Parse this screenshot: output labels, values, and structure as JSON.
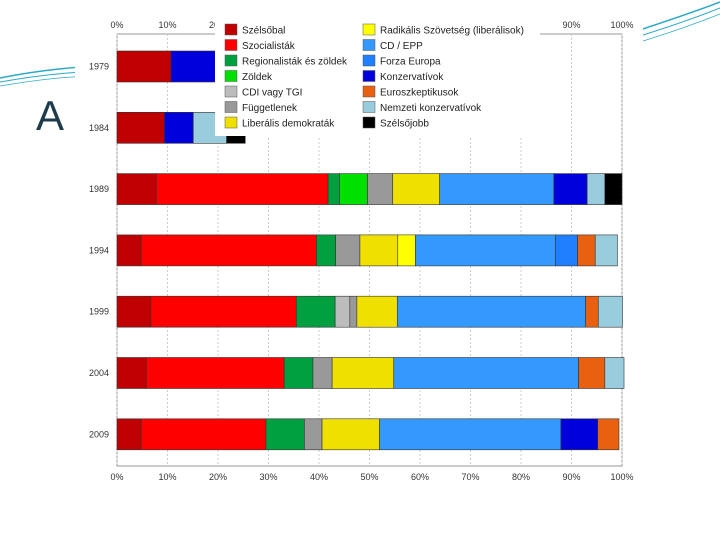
{
  "slide": {
    "title_visible_letter": "A",
    "background_color": "#ffffff",
    "accent_color": "#2aa9c9"
  },
  "chart_data": {
    "type": "bar",
    "orientation": "horizontal",
    "stacked": true,
    "title": "",
    "xlabel": "",
    "ylabel": "",
    "xlim": [
      0,
      100
    ],
    "x_ticks": [
      "0%",
      "10%",
      "20%",
      "30%",
      "40%",
      "50%",
      "60%",
      "70%",
      "80%",
      "90%",
      "100%"
    ],
    "grid": true,
    "legend_position": "top, two columns",
    "categories": [
      "1979",
      "1984",
      "1989",
      "1994",
      "1999",
      "2004",
      "2009"
    ],
    "series": [
      {
        "name": "Szélsőbal",
        "color": "#c00000",
        "values": [
          10.7,
          9.4,
          7.8,
          4.8,
          6.7,
          5.8,
          4.8
        ]
      },
      {
        "name": "Szocialisták",
        "color": "#ff0000",
        "values": [
          0,
          0,
          34.0,
          34.7,
          28.8,
          27.3,
          24.7
        ]
      },
      {
        "name": "Regionalisták és zöldek",
        "color": "#00a040",
        "values": [
          0,
          0,
          2.3,
          3.8,
          7.7,
          5.7,
          7.6
        ]
      },
      {
        "name": "Zöldek",
        "color": "#00e000",
        "values": [
          0,
          0,
          5.5,
          0,
          0,
          0,
          0
        ]
      },
      {
        "name": "CDI vagy TGI",
        "color": "#bcbcbc",
        "values": [
          0,
          0,
          0,
          0,
          2.9,
          0,
          0
        ]
      },
      {
        "name": "Függetlenek",
        "color": "#999999",
        "values": [
          0,
          0,
          5.0,
          4.8,
          1.4,
          3.8,
          3.5
        ]
      },
      {
        "name": "Liberális demokraták",
        "color": "#f0e000",
        "values": [
          0,
          0,
          9.3,
          7.5,
          8.0,
          12.2,
          11.4
        ]
      },
      {
        "name": "Radikális Szövetség (liberálisok)",
        "color": "#ffff00",
        "values": [
          0,
          0,
          0,
          3.5,
          0,
          0,
          0
        ]
      },
      {
        "name": "CD / EPP",
        "color": "#3399ff",
        "values": [
          0,
          0,
          22.6,
          27.7,
          37.3,
          36.6,
          35.9
        ]
      },
      {
        "name": "Forza Europa",
        "color": "#1f7fff",
        "values": [
          0,
          0,
          0,
          4.4,
          0,
          0,
          0
        ]
      },
      {
        "name": "Konzervatívok",
        "color": "#0000dd",
        "values": [
          16.5,
          5.7,
          6.6,
          0,
          0,
          0,
          7.3
        ]
      },
      {
        "name": "Euroszkeptikusok",
        "color": "#e86010",
        "values": [
          0,
          0,
          0,
          3.5,
          2.5,
          5.2,
          4.2
        ]
      },
      {
        "name": "Nemzeti konzervatívok",
        "color": "#99ccdd",
        "values": [
          4.9,
          6.6,
          3.5,
          4.4,
          4.8,
          3.8,
          0
        ]
      },
      {
        "name": "Szélsőjobb",
        "color": "#000000",
        "values": [
          0,
          3.7,
          3.4,
          0,
          0,
          0,
          0
        ]
      }
    ]
  }
}
